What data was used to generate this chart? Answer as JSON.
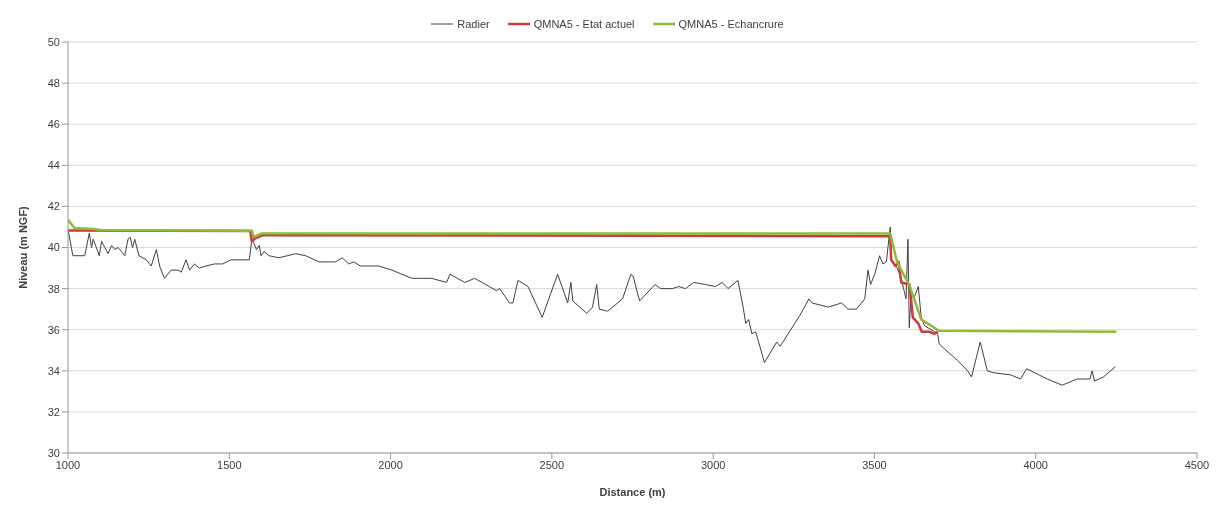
{
  "chart_data": {
    "type": "line",
    "xlabel": "Distance (m)",
    "ylabel": "Niveau (m NGF)",
    "xlim": [
      1000,
      4500
    ],
    "xticks": [
      1000,
      1500,
      2000,
      2500,
      3000,
      3500,
      4000,
      4500
    ],
    "ylim": [
      30,
      50
    ],
    "yticks": [
      30,
      32,
      34,
      36,
      38,
      40,
      42,
      44,
      46,
      48,
      50
    ],
    "grid": "y",
    "legend": "top",
    "series": [
      {
        "name": "Radier",
        "color": "#404040",
        "x": [
          1000,
          1015,
          1052,
          1066,
          1073,
          1078,
          1088,
          1097,
          1104,
          1114,
          1124,
          1135,
          1145,
          1155,
          1166,
          1176,
          1186,
          1193,
          1200,
          1207,
          1220,
          1243,
          1258,
          1274,
          1284,
          1299,
          1320,
          1341,
          1351,
          1366,
          1377,
          1392,
          1407,
          1428,
          1454,
          1479,
          1505,
          1562,
          1570,
          1577,
          1584,
          1593,
          1598,
          1608,
          1623,
          1654,
          1706,
          1737,
          1778,
          1829,
          1850,
          1870,
          1886,
          1906,
          1963,
          2004,
          2066,
          2127,
          2174,
          2184,
          2230,
          2261,
          2328,
          2338,
          2369,
          2379,
          2395,
          2426,
          2470,
          2518,
          2549,
          2559,
          2565,
          2608,
          2626,
          2639,
          2647,
          2673,
          2719,
          2745,
          2752,
          2772,
          2820,
          2837,
          2873,
          2894,
          2914,
          2940,
          2976,
          3007,
          3028,
          3046,
          3077,
          3094,
          3101,
          3110,
          3120,
          3132,
          3159,
          3197,
          3208,
          3269,
          3297,
          3307,
          3357,
          3398,
          3418,
          3444,
          3470,
          3480,
          3488,
          3501,
          3516,
          3526,
          3537,
          3549,
          3552,
          3568,
          3583,
          3598,
          3604,
          3608,
          3614,
          3624,
          3636,
          3645,
          3655,
          3676,
          3696,
          3701,
          3722,
          3758,
          3789,
          3801,
          3828,
          3850,
          3871,
          3923,
          3953,
          3972,
          4036,
          4082,
          4128,
          4168,
          4175,
          4182,
          4210,
          4247
        ],
        "values": [
          40.9,
          39.6,
          39.6,
          40.7,
          40,
          40.4,
          40,
          39.6,
          40.3,
          40,
          39.7,
          40.1,
          39.9,
          40,
          39.8,
          39.6,
          40.4,
          40.5,
          40,
          40.4,
          39.6,
          39.4,
          39.1,
          39.9,
          39.1,
          38.5,
          38.9,
          38.9,
          38.8,
          39.4,
          38.9,
          39.2,
          39,
          39.1,
          39.2,
          39.2,
          39.4,
          39.4,
          40.4,
          40.2,
          39.9,
          40.1,
          39.6,
          39.8,
          39.6,
          39.5,
          39.7,
          39.6,
          39.3,
          39.3,
          39.5,
          39.2,
          39.3,
          39.1,
          39.1,
          38.9,
          38.5,
          38.5,
          38.3,
          38.7,
          38.3,
          38.5,
          37.9,
          38,
          37.3,
          37.3,
          38.4,
          38.1,
          36.6,
          38.7,
          37.3,
          38.3,
          37.4,
          36.8,
          37.1,
          38.2,
          37,
          36.9,
          37.5,
          38.7,
          38.6,
          37.4,
          38.2,
          38,
          38,
          38.1,
          38,
          38.3,
          38.2,
          38.1,
          38.3,
          38,
          38.4,
          37,
          36.3,
          36.5,
          35.8,
          35.9,
          34.4,
          35.4,
          35.2,
          36.7,
          37.5,
          37.3,
          37.1,
          37.3,
          37,
          37,
          37.5,
          38.9,
          38.2,
          38.7,
          39.6,
          39.2,
          39.3,
          41,
          39.4,
          39.1,
          38.5,
          37.5,
          40.4,
          36.1,
          37.8,
          37.6,
          38.1,
          36.6,
          36.2,
          36,
          35.8,
          35.3,
          35,
          34.5,
          34,
          33.7,
          35.4,
          34,
          33.9,
          33.8,
          33.6,
          34.1,
          33.6,
          33.3,
          33.6,
          33.6,
          34,
          33.5,
          33.7,
          34.2
        ]
      },
      {
        "name": "QMNA5 - Etat actuel",
        "color": "#d0393b",
        "x": [
          1000,
          1565,
          1570,
          1580,
          1605,
          3549,
          3552,
          3565,
          3575,
          3583,
          3609,
          3619,
          3636,
          3647,
          3670,
          3686,
          3696
        ],
        "values": [
          40.83,
          40.8,
          40.3,
          40.45,
          40.6,
          40.55,
          39.4,
          39.1,
          39.3,
          38.3,
          38.2,
          36.6,
          36.3,
          35.9,
          35.9,
          35.8,
          35.9
        ]
      },
      {
        "name": "QMNA5 - Echancrure",
        "color": "#8dbb3c",
        "x": [
          1000,
          1020,
          1080,
          1100,
          1570,
          1575,
          1600,
          3549,
          3570,
          3610,
          3645,
          3700,
          4250
        ],
        "values": [
          41.35,
          40.95,
          40.9,
          40.85,
          40.82,
          40.5,
          40.68,
          40.68,
          39.3,
          38.1,
          36.5,
          35.95,
          35.9
        ]
      }
    ]
  }
}
